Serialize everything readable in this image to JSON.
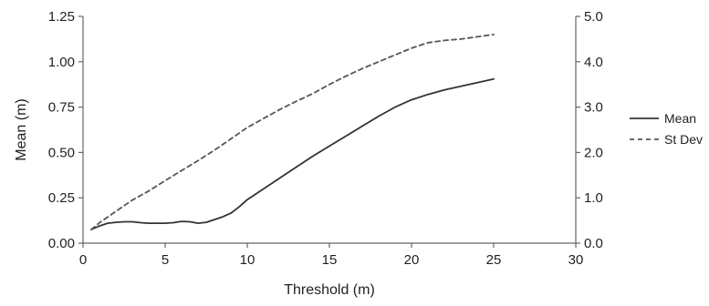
{
  "chart_data": {
    "type": "line",
    "title": "",
    "xlabel": "Threshold (m)",
    "ylabel": "Mean (m)",
    "y2label": "",
    "xlim": [
      0,
      30
    ],
    "ylim": [
      0,
      1.25
    ],
    "y2lim": [
      0,
      5.0
    ],
    "grid": false,
    "legend_position": "right",
    "x_ticks": [
      "0",
      "5",
      "10",
      "15",
      "20",
      "25",
      "30"
    ],
    "y_ticks": [
      "0.00",
      "0.25",
      "0.50",
      "0.75",
      "1.00",
      "1.25"
    ],
    "y2_ticks": [
      "0.0",
      "1.0",
      "2.0",
      "3.0",
      "4.0",
      "5.0"
    ],
    "series": [
      {
        "name": "Mean",
        "axis": "left",
        "style": "solid",
        "color": "#333333",
        "x": [
          0.5,
          1,
          1.5,
          2,
          2.5,
          3,
          3.5,
          4,
          4.5,
          5,
          5.5,
          6,
          6.5,
          7,
          7.5,
          8,
          8.5,
          9,
          9.5,
          10,
          11,
          12,
          13,
          14,
          15,
          16,
          17,
          18,
          19,
          20,
          21,
          22,
          23,
          24,
          25
        ],
        "values": [
          0.075,
          0.095,
          0.11,
          0.115,
          0.118,
          0.118,
          0.113,
          0.11,
          0.11,
          0.11,
          0.113,
          0.12,
          0.118,
          0.11,
          0.115,
          0.13,
          0.145,
          0.165,
          0.2,
          0.24,
          0.3,
          0.36,
          0.42,
          0.48,
          0.535,
          0.59,
          0.645,
          0.7,
          0.75,
          0.79,
          0.82,
          0.845,
          0.865,
          0.885,
          0.905
        ]
      },
      {
        "name": "St Dev",
        "axis": "right",
        "style": "dashed",
        "color": "#555555",
        "x": [
          0.5,
          1,
          2,
          3,
          4,
          5,
          6,
          7,
          8,
          9,
          10,
          11,
          12,
          13,
          14,
          15,
          16,
          17,
          18,
          19,
          20,
          21,
          22,
          23,
          24,
          25
        ],
        "values": [
          0.3,
          0.45,
          0.7,
          0.95,
          1.15,
          1.38,
          1.6,
          1.82,
          2.05,
          2.3,
          2.55,
          2.75,
          2.95,
          3.13,
          3.3,
          3.5,
          3.68,
          3.85,
          4.0,
          4.15,
          4.3,
          4.42,
          4.47,
          4.5,
          4.55,
          4.6
        ]
      }
    ]
  }
}
